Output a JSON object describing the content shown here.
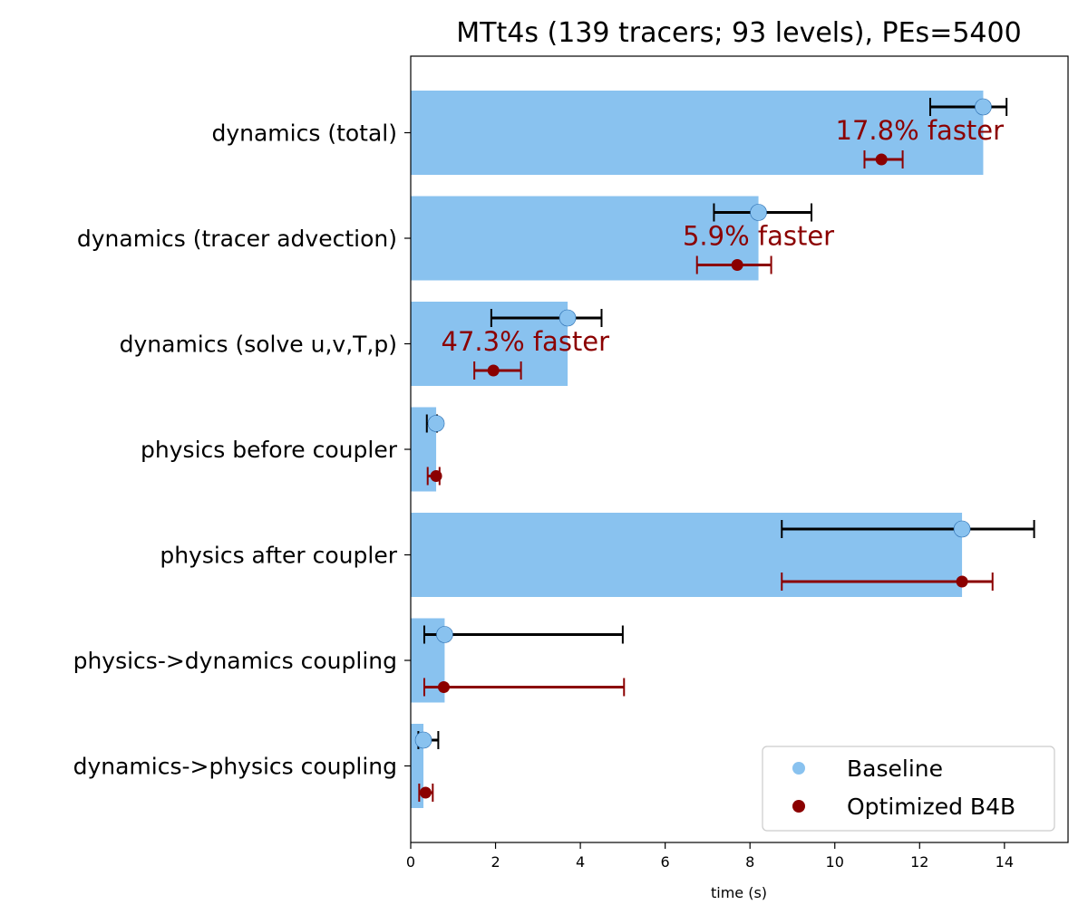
{
  "chart_data": {
    "type": "bar",
    "orientation": "horizontal",
    "title": "MTt4s (139 tracers; 93 levels), PEs=5400",
    "xlabel": "time (s)",
    "ylabel": "",
    "xlim": [
      0,
      15.5
    ],
    "xticks": [
      0,
      2,
      4,
      6,
      8,
      10,
      12,
      14
    ],
    "grid": false,
    "legend_position": "bottom-right",
    "categories": [
      "dynamics (total)",
      "dynamics (tracer advection)",
      "dynamics (solve u,v,T,p)",
      "physics before coupler",
      "physics after coupler",
      "physics->dynamics coupling",
      "dynamics->physics coupling"
    ],
    "bar_values": [
      13.5,
      8.2,
      3.7,
      0.6,
      13.0,
      0.8,
      0.3
    ],
    "series": [
      {
        "name": "Baseline",
        "color": "#89c2ef",
        "values": [
          13.5,
          8.2,
          3.7,
          0.6,
          13.0,
          0.8,
          0.3
        ],
        "err_low": [
          12.25,
          7.15,
          1.9,
          0.38,
          8.75,
          0.32,
          0.18
        ],
        "err_high": [
          14.05,
          9.45,
          4.5,
          0.62,
          14.7,
          5.0,
          0.65
        ],
        "err_color": "#000000"
      },
      {
        "name": "Optimized B4B",
        "color": "#8b0000",
        "values": [
          11.1,
          7.7,
          1.95,
          0.6,
          13.0,
          0.78,
          0.35
        ],
        "err_low": [
          10.7,
          6.75,
          1.5,
          0.4,
          8.75,
          0.32,
          0.2
        ],
        "err_high": [
          11.6,
          8.5,
          2.6,
          0.68,
          13.72,
          5.03,
          0.52
        ],
        "err_color": "#8b0000"
      }
    ],
    "annotations": [
      {
        "category_index": 0,
        "x": 12.0,
        "text": "17.8% faster"
      },
      {
        "category_index": 1,
        "x": 8.2,
        "text": "5.9% faster"
      },
      {
        "category_index": 2,
        "x": 2.7,
        "text": "47.3% faster"
      }
    ]
  }
}
